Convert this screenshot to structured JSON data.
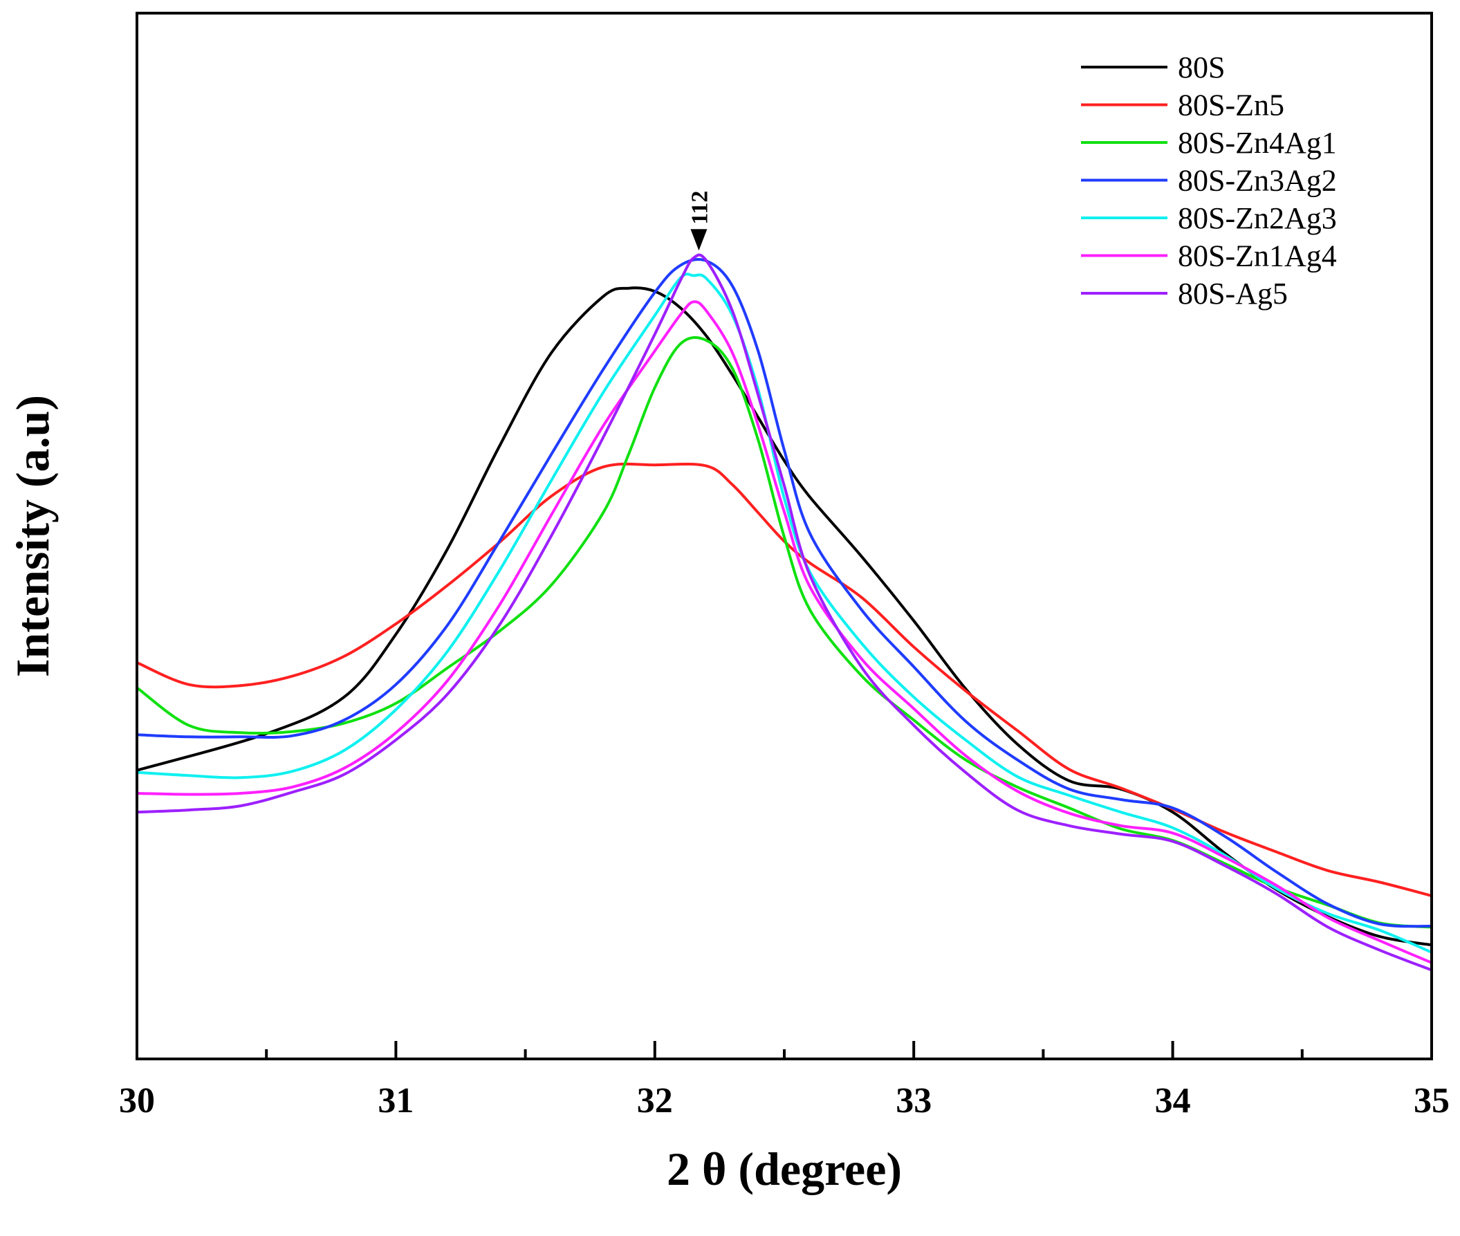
{
  "chart_data": {
    "type": "line",
    "title": "",
    "xlabel": "2 θ (degree)",
    "ylabel": "Intensity (a.u)",
    "xlim": [
      30,
      35
    ],
    "ylim": [
      0,
      100
    ],
    "xticks": [
      30,
      31,
      32,
      33,
      34,
      35
    ],
    "xtick_labels": [
      "30",
      "31",
      "32",
      "33",
      "34",
      "35"
    ],
    "minor_xticks": [
      30.5,
      31.5,
      32.5,
      33.5,
      34.5
    ],
    "yticks_shown": false,
    "legend_position": "top-right",
    "grid": false,
    "annotation": {
      "text": "112",
      "x": 32.17,
      "y": 77.3,
      "marker": "down-arrow"
    },
    "series": [
      {
        "name": "80S",
        "color": "#000000",
        "x": [
          30.0,
          30.5,
          30.8,
          31.0,
          31.2,
          31.4,
          31.6,
          31.8,
          31.9,
          32.0,
          32.1,
          32.2,
          32.3,
          32.4,
          32.5,
          32.6,
          32.8,
          33.0,
          33.2,
          33.4,
          33.6,
          33.8,
          34.0,
          34.2,
          34.4,
          34.6,
          34.8,
          35.0
        ],
        "y": [
          27.6,
          31.1,
          34.6,
          40.6,
          48.8,
          58.6,
          67.5,
          72.9,
          73.7,
          73.4,
          71.8,
          69.1,
          65.4,
          61.3,
          57.2,
          53.7,
          48.0,
          41.9,
          35.4,
          30.1,
          26.6,
          25.8,
          23.6,
          19.7,
          16.2,
          13.6,
          11.7,
          10.9
        ]
      },
      {
        "name": "80S-Zn5",
        "color": "#ff2020",
        "x": [
          30.0,
          30.2,
          30.4,
          30.6,
          30.8,
          31.0,
          31.2,
          31.4,
          31.6,
          31.8,
          32.0,
          32.2,
          32.3,
          32.4,
          32.5,
          32.6,
          32.8,
          33.0,
          33.2,
          33.4,
          33.6,
          33.8,
          34.0,
          34.2,
          34.4,
          34.6,
          34.8,
          35.0
        ],
        "y": [
          37.9,
          35.8,
          35.7,
          36.6,
          38.5,
          41.6,
          45.3,
          49.4,
          53.8,
          56.6,
          56.8,
          56.7,
          54.9,
          52.2,
          49.5,
          47.4,
          44.1,
          39.4,
          35.2,
          31.4,
          27.7,
          25.9,
          23.9,
          21.7,
          19.8,
          18.0,
          16.9,
          15.6
        ]
      },
      {
        "name": "80S-Zn4Ag1",
        "color": "#10e010",
        "x": [
          30.0,
          30.2,
          30.4,
          30.6,
          30.8,
          31.0,
          31.2,
          31.4,
          31.6,
          31.8,
          31.9,
          32.0,
          32.1,
          32.2,
          32.3,
          32.4,
          32.5,
          32.6,
          32.8,
          33.0,
          33.2,
          33.4,
          33.6,
          33.8,
          34.0,
          34.2,
          34.4,
          34.6,
          34.8,
          35.0
        ],
        "y": [
          35.5,
          31.9,
          31.2,
          31.3,
          32.1,
          34.0,
          37.4,
          40.9,
          45.3,
          52.2,
          57.9,
          64.2,
          68.4,
          68.7,
          66.0,
          59.1,
          49.9,
          42.9,
          36.6,
          32.4,
          28.6,
          26.0,
          24.0,
          22.0,
          20.9,
          18.7,
          16.4,
          14.7,
          13.0,
          12.6
        ]
      },
      {
        "name": "80S-Zn3Ag2",
        "color": "#1f3cff",
        "x": [
          30.0,
          30.2,
          30.4,
          30.6,
          30.8,
          31.0,
          31.2,
          31.4,
          31.6,
          31.8,
          32.0,
          32.1,
          32.2,
          32.3,
          32.4,
          32.5,
          32.6,
          32.8,
          33.0,
          33.2,
          33.4,
          33.6,
          33.8,
          34.0,
          34.2,
          34.4,
          34.6,
          34.8,
          35.0
        ],
        "y": [
          31.0,
          30.8,
          30.8,
          30.9,
          32.4,
          35.8,
          41.5,
          49.5,
          57.8,
          65.9,
          73.3,
          75.9,
          76.3,
          73.9,
          67.6,
          58.2,
          50.2,
          42.9,
          37.5,
          32.3,
          28.6,
          25.8,
          24.8,
          24.0,
          21.3,
          17.9,
          14.8,
          12.9,
          12.7
        ]
      },
      {
        "name": "80S-Zn2Ag3",
        "color": "#10f0f0",
        "x": [
          30.0,
          30.2,
          30.4,
          30.6,
          30.8,
          31.0,
          31.2,
          31.4,
          31.6,
          31.8,
          32.0,
          32.1,
          32.15,
          32.2,
          32.3,
          32.4,
          32.5,
          32.6,
          32.8,
          33.0,
          33.2,
          33.4,
          33.6,
          33.8,
          34.0,
          34.2,
          34.4,
          34.6,
          34.8,
          35.0
        ],
        "y": [
          27.4,
          27.1,
          26.9,
          27.5,
          29.5,
          33.4,
          39.0,
          46.7,
          55.3,
          63.7,
          71.1,
          74.7,
          74.9,
          74.6,
          71.1,
          63.9,
          53.6,
          46.5,
          39.7,
          34.6,
          30.5,
          27.0,
          25.2,
          23.6,
          22.1,
          19.5,
          16.3,
          13.9,
          12.3,
          10.2
        ]
      },
      {
        "name": "80S-Zn1Ag4",
        "color": "#ff20ff",
        "x": [
          30.0,
          30.2,
          30.4,
          30.6,
          30.8,
          31.0,
          31.2,
          31.4,
          31.6,
          31.8,
          32.0,
          32.1,
          32.15,
          32.2,
          32.3,
          32.4,
          32.5,
          32.6,
          32.8,
          33.0,
          33.2,
          33.4,
          33.6,
          33.8,
          34.0,
          34.2,
          34.4,
          34.6,
          34.8,
          35.0
        ],
        "y": [
          25.4,
          25.3,
          25.4,
          26.0,
          27.8,
          31.2,
          36.2,
          43.4,
          52.0,
          60.5,
          67.7,
          71.2,
          72.4,
          71.5,
          67.5,
          60.5,
          52.3,
          45.1,
          38.2,
          33.5,
          29.0,
          25.6,
          23.5,
          22.3,
          21.6,
          19.3,
          16.6,
          13.5,
          11.3,
          9.2
        ]
      },
      {
        "name": "80S-Ag5",
        "color": "#9d20ff",
        "x": [
          30.0,
          30.2,
          30.4,
          30.6,
          30.8,
          31.0,
          31.2,
          31.4,
          31.6,
          31.8,
          32.0,
          32.1,
          32.15,
          32.2,
          32.3,
          32.4,
          32.5,
          32.6,
          32.8,
          33.0,
          33.2,
          33.4,
          33.6,
          33.8,
          34.0,
          34.2,
          34.4,
          34.6,
          34.8,
          35.0
        ],
        "y": [
          23.6,
          23.8,
          24.2,
          25.5,
          27.2,
          30.5,
          34.9,
          41.5,
          50.0,
          59.4,
          69.3,
          74.5,
          76.6,
          76.3,
          71.5,
          63.4,
          54.8,
          46.2,
          37.4,
          31.9,
          27.4,
          23.8,
          22.3,
          21.5,
          20.8,
          18.5,
          15.8,
          12.6,
          10.4,
          8.5
        ]
      }
    ]
  }
}
